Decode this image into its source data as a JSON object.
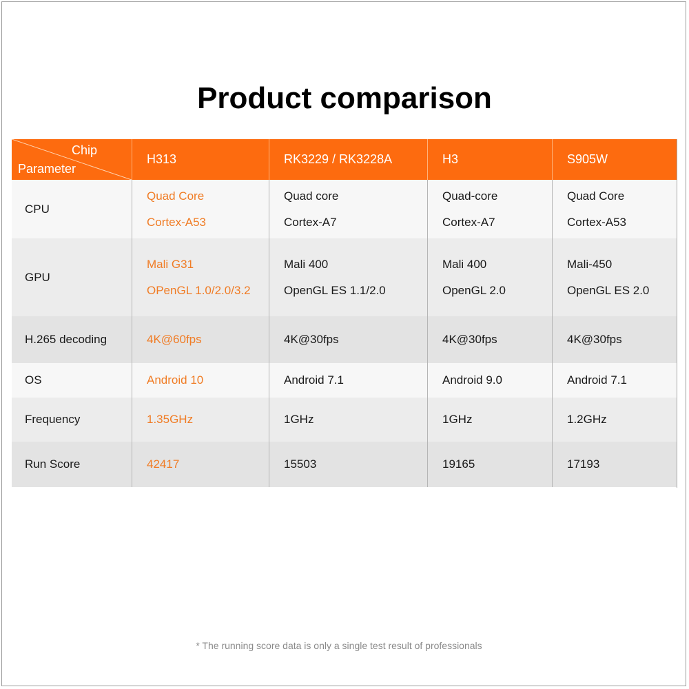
{
  "title": "Product comparison",
  "header": {
    "corner_top": "Chip",
    "corner_bottom": "Parameter",
    "chips": [
      "H313",
      "RK3229 / RK3228A",
      "H3",
      "S905W"
    ]
  },
  "colors": {
    "header_bg": "#fd6b0f",
    "highlight_text": "#f07c25"
  },
  "rows": [
    {
      "param": "CPU",
      "values": [
        [
          "Quad Core",
          "Cortex-A53"
        ],
        [
          "Quad core",
          "Cortex-A7"
        ],
        [
          "Quad-core",
          "Cortex-A7"
        ],
        [
          "Quad Core",
          "Cortex-A53"
        ]
      ]
    },
    {
      "param": "GPU",
      "values": [
        [
          "Mali G31",
          "OPenGL 1.0/2.0/3.2"
        ],
        [
          "Mali 400",
          "OpenGL ES 1.1/2.0"
        ],
        [
          "Mali 400",
          "OpenGL 2.0"
        ],
        [
          "Mali-450",
          "OpenGL ES 2.0"
        ]
      ]
    },
    {
      "param": "H.265 decoding",
      "values": [
        [
          "4K@60fps"
        ],
        [
          "4K@30fps"
        ],
        [
          "4K@30fps"
        ],
        [
          "4K@30fps"
        ]
      ]
    },
    {
      "param": "OS",
      "values": [
        [
          "Android 10"
        ],
        [
          "Android 7.1"
        ],
        [
          "Android 9.0"
        ],
        [
          "Android 7.1"
        ]
      ]
    },
    {
      "param": "Frequency",
      "values": [
        [
          "1.35GHz"
        ],
        [
          "1GHz"
        ],
        [
          "1GHz"
        ],
        [
          "1.2GHz"
        ]
      ]
    },
    {
      "param": "Run Score",
      "values": [
        [
          "42417"
        ],
        [
          "15503"
        ],
        [
          "19165"
        ],
        [
          "17193"
        ]
      ]
    }
  ],
  "footnote": "* The running score data is only a single test result of professionals"
}
